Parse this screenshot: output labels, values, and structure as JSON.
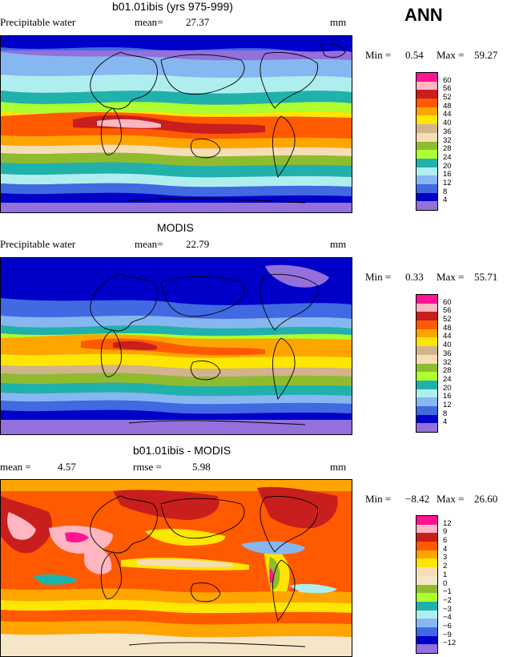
{
  "season": "ANN",
  "panels": [
    {
      "title": "b01.01ibis (yrs 975-999)",
      "left_label": "Precipitable water",
      "center_label": "mean=",
      "center_value": "27.37",
      "units": "mm",
      "minmax": {
        "min_label": "Min =",
        "min_value": "0.54",
        "max_label": "Max =",
        "max_value": "59.27"
      },
      "colorbar_levels": [
        "60",
        "56",
        "52",
        "48",
        "44",
        "40",
        "36",
        "32",
        "28",
        "24",
        "20",
        "16",
        "12",
        "8",
        "4"
      ],
      "colorbar_colors": [
        "#ff1493",
        "#ffb6c1",
        "#c81e1e",
        "#ff5a00",
        "#ffa500",
        "#ffe600",
        "#d2b48c",
        "#f5deb3",
        "#8fbc2f",
        "#adff2f",
        "#20b2aa",
        "#afeeee",
        "#87b7f0",
        "#4169e1",
        "#0000c8",
        "#9370db"
      ]
    },
    {
      "title": "MODIS",
      "left_label": "Precipitable water",
      "center_label": "mean=",
      "center_value": "22.79",
      "units": "mm",
      "minmax": {
        "min_label": "Min =",
        "min_value": "0.33",
        "max_label": "Max =",
        "max_value": "55.71"
      },
      "colorbar_levels": [
        "60",
        "56",
        "52",
        "48",
        "44",
        "40",
        "36",
        "32",
        "28",
        "24",
        "20",
        "16",
        "12",
        "8",
        "4"
      ],
      "colorbar_colors": [
        "#ff1493",
        "#ffb6c1",
        "#c81e1e",
        "#ff5a00",
        "#ffa500",
        "#ffe600",
        "#d2b48c",
        "#f5deb3",
        "#8fbc2f",
        "#adff2f",
        "#20b2aa",
        "#afeeee",
        "#87b7f0",
        "#4169e1",
        "#0000c8",
        "#9370db"
      ]
    },
    {
      "title": "b01.01ibis - MODIS",
      "left_label": "mean =",
      "left_value": "4.57",
      "center_label": "rmse =",
      "center_value": "5.98",
      "units": "mm",
      "minmax": {
        "min_label": "Min =",
        "min_value": "−8.42",
        "max_label": "Max =",
        "max_value": "26.60"
      },
      "colorbar_levels": [
        "12",
        "9",
        "6",
        "4",
        "3",
        "2",
        "1",
        "0",
        "−1",
        "−2",
        "−3",
        "−4",
        "−6",
        "−9",
        "−12"
      ],
      "colorbar_colors": [
        "#ff1493",
        "#ffb6c1",
        "#c81e1e",
        "#ff5a00",
        "#ffa500",
        "#ffe600",
        "#f5deb3",
        "#f5e6c8",
        "#8fbc2f",
        "#adff2f",
        "#20b2aa",
        "#afeeee",
        "#87b7f0",
        "#4169e1",
        "#0000c8",
        "#9370db"
      ]
    }
  ]
}
